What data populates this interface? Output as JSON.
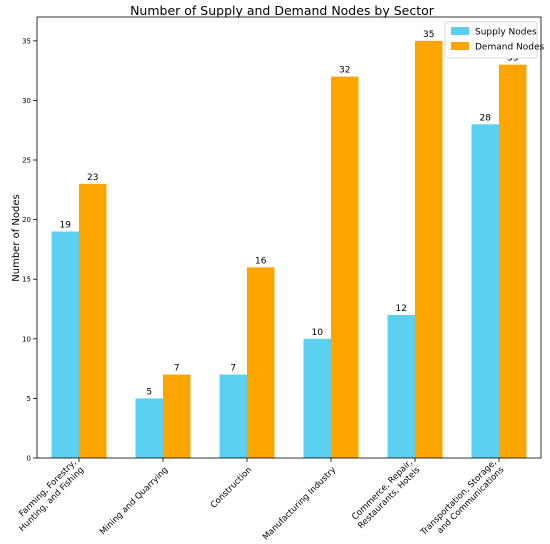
{
  "chart_data": {
    "type": "bar",
    "title": "Number of Supply and Demand Nodes by Sector",
    "xlabel": "",
    "ylabel": "Number of Nodes",
    "ylim": [
      0,
      37
    ],
    "yticks": [
      0,
      5,
      10,
      15,
      20,
      25,
      30,
      35
    ],
    "grid": false,
    "legend_position": "top-right",
    "categories": [
      [
        "Farming, Forestry,",
        "Hunting, and Fishing"
      ],
      [
        "Mining and Quarrying"
      ],
      [
        "Construction"
      ],
      [
        "Manufacturing Industry"
      ],
      [
        "Commerce, Repair,",
        "Restaurants, Hotels"
      ],
      [
        "Transportation, Storage,",
        "and Communications"
      ]
    ],
    "series": [
      {
        "name": "Supply Nodes",
        "color": "#5bcfef",
        "values": [
          19,
          5,
          7,
          10,
          12,
          28
        ]
      },
      {
        "name": "Demand Nodes",
        "color": "#ffa500",
        "values": [
          23,
          7,
          16,
          32,
          35,
          33
        ]
      }
    ]
  }
}
